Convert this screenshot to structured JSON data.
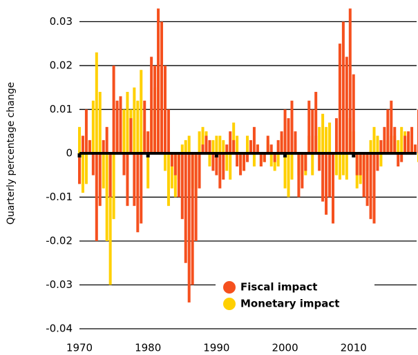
{
  "chart_data": {
    "type": "bar",
    "y_label": "Quarterly percentage change",
    "x": [
      1970,
      1970.5,
      1971,
      1971.5,
      1972,
      1972.5,
      1973,
      1973.5,
      1974,
      1974.5,
      1975,
      1975.5,
      1976,
      1976.5,
      1977,
      1977.5,
      1978,
      1978.5,
      1979,
      1979.5,
      1980,
      1980.5,
      1981,
      1981.5,
      1982,
      1982.5,
      1983,
      1983.5,
      1984,
      1984.5,
      1985,
      1985.5,
      1986,
      1986.5,
      1987,
      1987.5,
      1988,
      1988.5,
      1989,
      1989.5,
      1990,
      1990.5,
      1991,
      1991.5,
      1992,
      1992.5,
      1993,
      1993.5,
      1994,
      1994.5,
      1995,
      1995.5,
      1996,
      1996.5,
      1997,
      1997.5,
      1998,
      1998.5,
      1999,
      1999.5,
      2000,
      2000.5,
      2001,
      2001.5,
      2002,
      2002.5,
      2003,
      2003.5,
      2004,
      2004.5,
      2005,
      2005.5,
      2006,
      2006.5,
      2007,
      2007.5,
      2008,
      2008.5,
      2009,
      2009.5,
      2010,
      2010.5,
      2011,
      2011.5,
      2012,
      2012.5,
      2013,
      2013.5,
      2014,
      2014.5,
      2015,
      2015.5,
      2016,
      2016.5,
      2017,
      2017.5,
      2018,
      2018.5,
      2019,
      2019.5
    ],
    "series": [
      {
        "name": "Monetary impact",
        "color": "#ffd000",
        "values": [
          0.006,
          -0.009,
          -0.007,
          0.003,
          0.012,
          0.023,
          0.014,
          -0.008,
          -0.02,
          -0.03,
          -0.015,
          0.005,
          0.008,
          0.01,
          0.014,
          0.01,
          0.015,
          0.012,
          0.019,
          0.005,
          -0.008,
          0.01,
          0.015,
          0.02,
          0.012,
          -0.004,
          -0.012,
          -0.008,
          -0.01,
          -0.006,
          0.002,
          0.003,
          0.004,
          -0.008,
          -0.01,
          0.005,
          0.006,
          0.005,
          -0.003,
          0.003,
          0.004,
          0.004,
          0.003,
          -0.004,
          -0.006,
          0.007,
          0.004,
          -0.003,
          -0.004,
          0.004,
          0.002,
          -0.003,
          0.002,
          -0.003,
          -0.002,
          0.003,
          -0.003,
          -0.004,
          -0.003,
          0.004,
          -0.008,
          -0.01,
          -0.006,
          0.003,
          -0.005,
          -0.006,
          -0.005,
          0.004,
          -0.005,
          0.004,
          0.006,
          0.009,
          0.006,
          0.007,
          -0.004,
          -0.005,
          -0.006,
          -0.005,
          -0.006,
          0.008,
          0.005,
          -0.008,
          -0.007,
          -0.006,
          -0.004,
          0.003,
          0.006,
          0.004,
          -0.003,
          0.003,
          0.003,
          0.004,
          0.004,
          0.003,
          0.006,
          0.005,
          0.004,
          0.002,
          0.001,
          -0.002
        ]
      },
      {
        "name": "Fiscal impact",
        "color": "#f5501e",
        "values": [
          -0.007,
          0.004,
          0.01,
          0.003,
          -0.005,
          -0.02,
          -0.012,
          0.003,
          0.006,
          -0.01,
          0.02,
          0.012,
          0.013,
          -0.005,
          -0.012,
          0.008,
          -0.012,
          -0.018,
          -0.016,
          0.012,
          0.005,
          0.022,
          0.02,
          0.033,
          0.03,
          0.02,
          0.01,
          -0.003,
          -0.005,
          -0.01,
          -0.015,
          -0.025,
          -0.034,
          -0.03,
          -0.02,
          -0.008,
          0.002,
          0.004,
          0.003,
          -0.004,
          -0.005,
          -0.008,
          -0.006,
          0.002,
          0.005,
          0.003,
          -0.003,
          -0.005,
          -0.004,
          -0.002,
          0.003,
          0.006,
          0.002,
          -0.003,
          -0.002,
          0.004,
          0.002,
          -0.002,
          0.003,
          0.005,
          0.01,
          0.008,
          0.012,
          0.005,
          -0.01,
          -0.008,
          -0.004,
          0.012,
          0.01,
          0.014,
          -0.004,
          -0.011,
          -0.014,
          -0.01,
          -0.016,
          0.008,
          0.025,
          0.03,
          0.022,
          0.033,
          0.018,
          -0.005,
          -0.005,
          -0.01,
          -0.012,
          -0.015,
          -0.016,
          -0.004,
          0.003,
          0.006,
          0.01,
          0.012,
          0.006,
          -0.003,
          -0.002,
          0.004,
          0.005,
          0.006,
          0.002,
          0.01
        ]
      }
    ],
    "xlim": [
      1970,
      2019.2
    ],
    "xticks": [
      1970,
      1980,
      1990,
      2000,
      2010
    ],
    "ylim": [
      -0.04,
      0.034
    ],
    "yticks": [
      -0.04,
      -0.03,
      -0.02,
      -0.01,
      0,
      0.01,
      0.02,
      0.03
    ],
    "grid": true,
    "legend": "lower right"
  }
}
